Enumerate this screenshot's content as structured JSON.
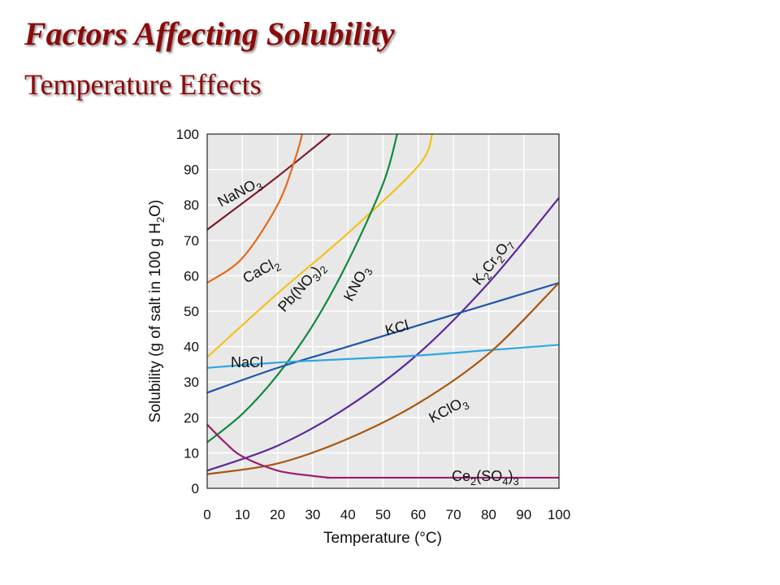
{
  "slide": {
    "title": "Factors Affecting Solubility",
    "subtitle": "Temperature Effects"
  },
  "chart_data": {
    "type": "line",
    "title": "",
    "xlabel": "Temperature (°C)",
    "ylabel": "Solubility (g of salt in 100 g H2O)",
    "xlim": [
      0,
      100
    ],
    "ylim": [
      0,
      100
    ],
    "xticks": [
      0,
      10,
      20,
      30,
      40,
      50,
      60,
      70,
      80,
      90,
      100
    ],
    "yticks": [
      0,
      10,
      20,
      30,
      40,
      50,
      60,
      70,
      80,
      90,
      100
    ],
    "grid": true,
    "legend": "none (series labeled directly on curves)",
    "series": [
      {
        "name": "NaNO3",
        "color": "#7a1f2b",
        "x": [
          0,
          20,
          35
        ],
        "y": [
          73,
          88,
          100
        ]
      },
      {
        "name": "CaCl2",
        "color": "#e46a1c",
        "x": [
          0,
          10,
          20,
          25,
          27
        ],
        "y": [
          58,
          65,
          80,
          93,
          100
        ]
      },
      {
        "name": "Pb(NO3)2",
        "color": "#f2c21b",
        "x": [
          0,
          20,
          40,
          60,
          64
        ],
        "y": [
          37,
          55,
          72,
          91,
          100
        ]
      },
      {
        "name": "KNO3",
        "color": "#0f8a3c",
        "x": [
          0,
          10,
          20,
          30,
          40,
          50,
          54
        ],
        "y": [
          13,
          21,
          32,
          46,
          64,
          86,
          100
        ]
      },
      {
        "name": "K2Cr2O7",
        "color": "#5b2a9a",
        "x": [
          0,
          20,
          40,
          60,
          80,
          100
        ],
        "y": [
          5,
          12,
          23,
          38,
          58,
          82
        ]
      },
      {
        "name": "KCl",
        "color": "#1d56a8",
        "x": [
          0,
          20,
          40,
          60,
          80,
          100
        ],
        "y": [
          27,
          34,
          40,
          46,
          52,
          58
        ]
      },
      {
        "name": "NaCl",
        "color": "#2aa8e0",
        "x": [
          0,
          20,
          40,
          60,
          80,
          100
        ],
        "y": [
          34,
          35.5,
          36.5,
          37.5,
          39,
          40.5
        ]
      },
      {
        "name": "KClO3",
        "color": "#a8560d",
        "x": [
          0,
          20,
          40,
          60,
          80,
          100
        ],
        "y": [
          4,
          7,
          14,
          24,
          38,
          58
        ]
      },
      {
        "name": "Ce2(SO4)3",
        "color": "#9a1f6e",
        "x": [
          0,
          5,
          10,
          20,
          30,
          35,
          40,
          100
        ],
        "y": [
          18,
          13,
          9,
          5,
          3.5,
          3,
          3,
          3
        ]
      }
    ],
    "curve_labels": [
      {
        "series": "NaNO3",
        "text": "NaNO",
        "sub": "3",
        "rotate": -28
      },
      {
        "series": "CaCl2",
        "text": "CaCl",
        "sub": "2",
        "rotate": -28
      },
      {
        "series": "Pb(NO3)2",
        "parts": [
          "Pb(NO",
          "3",
          ")",
          "2"
        ],
        "rotate": -48
      },
      {
        "series": "KNO3",
        "text": "KNO",
        "sub": "3",
        "rotate": -62
      },
      {
        "series": "K2Cr2O7",
        "parts": [
          "K",
          "2",
          "Cr",
          "2",
          "O",
          "7"
        ],
        "rotate": -52
      },
      {
        "series": "KCl",
        "text": "KCl",
        "rotate": -15
      },
      {
        "series": "NaCl",
        "text": "NaCl",
        "rotate": 0
      },
      {
        "series": "KClO3",
        "text": "KClO",
        "sub": "3",
        "rotate": -28
      },
      {
        "series": "Ce2(SO4)3",
        "parts": [
          "Ce",
          "2",
          "(SO",
          "4",
          ")",
          "3"
        ],
        "rotate": 0
      }
    ]
  }
}
